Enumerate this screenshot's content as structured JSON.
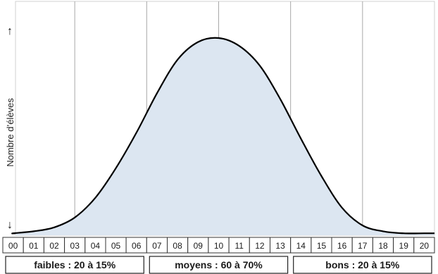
{
  "chart_data": {
    "type": "area",
    "ylabel": "Nombre d’élèves",
    "y_arrow_up": "↑",
    "y_arrow_down": "↓",
    "x": [
      "00",
      "01",
      "02",
      "03",
      "04",
      "05",
      "06",
      "07",
      "08",
      "09",
      "10",
      "11",
      "12",
      "13",
      "14",
      "15",
      "16",
      "17",
      "18",
      "19",
      "20"
    ],
    "series": [
      {
        "values": [
          0.01,
          0.02,
          0.04,
          0.09,
          0.19,
          0.34,
          0.52,
          0.72,
          0.89,
          0.98,
          1.0,
          0.96,
          0.86,
          0.69,
          0.49,
          0.3,
          0.14,
          0.05,
          0.02,
          0.01,
          0.01
        ]
      }
    ],
    "ylim": [
      0,
      1
    ],
    "fill_color": "#dce6f1",
    "line_color": "#000000",
    "grid": "vertical lines at 03, 06.5, 10, 13.5, 17",
    "groups": [
      {
        "label": "faibles : 20 à 15%",
        "from": "00",
        "to": "06"
      },
      {
        "label": "moyens : 60 à 70%",
        "from": "07",
        "to": "13"
      },
      {
        "label": "bons : 20 à 15%",
        "from": "14",
        "to": "20"
      }
    ]
  }
}
